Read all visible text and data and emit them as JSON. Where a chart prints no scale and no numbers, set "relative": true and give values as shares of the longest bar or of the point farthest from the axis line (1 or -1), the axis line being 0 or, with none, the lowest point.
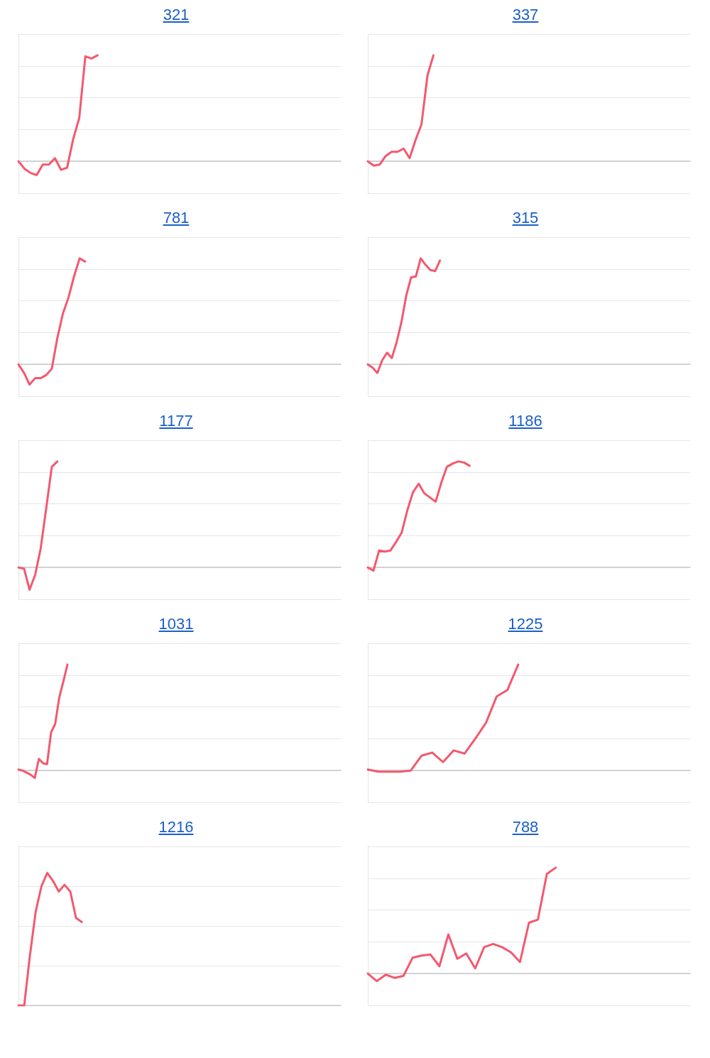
{
  "chart_data": [
    {
      "type": "line",
      "title": "321",
      "relative": true,
      "grid": "y",
      "marker": "none",
      "line_style": "solid",
      "color": "#f4586e",
      "categories": [
        null,
        null,
        null,
        null,
        null,
        null,
        null,
        null,
        null,
        null,
        null,
        null,
        null,
        null,
        null,
        null,
        null,
        null,
        null,
        null,
        null,
        null,
        null,
        null,
        null,
        null,
        null,
        null,
        null,
        null,
        null,
        null,
        null,
        null,
        null,
        null,
        null,
        null,
        null,
        null,
        null,
        null,
        null,
        null,
        null,
        null,
        null,
        null,
        null,
        null,
        null,
        null,
        null,
        null
      ],
      "values": [
        0,
        -0.07,
        -0.11,
        -0.13,
        -0.03,
        -0.03,
        0.03,
        -0.08,
        -0.06,
        0.21,
        0.41,
        0.99,
        0.97,
        1,
        null,
        null,
        null,
        null,
        null,
        null,
        null,
        null,
        null,
        null,
        null,
        null,
        null,
        null,
        null,
        null,
        null,
        null,
        null,
        null,
        null,
        null,
        null,
        null,
        null,
        null,
        null,
        null,
        null,
        null,
        null,
        null,
        null,
        null,
        null,
        null,
        null,
        null,
        null,
        null
      ]
    },
    {
      "type": "line",
      "title": "337",
      "relative": true,
      "grid": "y",
      "marker": "none",
      "line_style": "solid",
      "color": "#f4586e",
      "categories": [
        null,
        null,
        null,
        null,
        null,
        null,
        null,
        null,
        null,
        null,
        null,
        null,
        null,
        null,
        null,
        null,
        null,
        null,
        null,
        null,
        null,
        null,
        null,
        null,
        null,
        null,
        null,
        null,
        null,
        null,
        null,
        null,
        null,
        null,
        null,
        null,
        null,
        null,
        null,
        null,
        null,
        null,
        null,
        null,
        null,
        null,
        null,
        null,
        null,
        null,
        null,
        null,
        null,
        null,
        null
      ],
      "values": [
        0,
        -0.04,
        -0.03,
        0.05,
        0.09,
        0.09,
        0.12,
        0.03,
        0.2,
        0.35,
        0.81,
        1,
        null,
        null,
        null,
        null,
        null,
        null,
        null,
        null,
        null,
        null,
        null,
        null,
        null,
        null,
        null,
        null,
        null,
        null,
        null,
        null,
        null,
        null,
        null,
        null,
        null,
        null,
        null,
        null,
        null,
        null,
        null,
        null,
        null,
        null,
        null,
        null,
        null,
        null,
        null,
        null,
        null,
        null,
        null
      ]
    },
    {
      "type": "line",
      "title": "781",
      "relative": true,
      "grid": "y",
      "marker": "none",
      "line_style": "solid",
      "color": "#f4586e",
      "categories": [
        null,
        null,
        null,
        null,
        null,
        null,
        null,
        null,
        null,
        null,
        null,
        null,
        null,
        null,
        null,
        null,
        null,
        null,
        null,
        null,
        null,
        null,
        null,
        null,
        null,
        null,
        null,
        null,
        null,
        null,
        null,
        null,
        null,
        null,
        null,
        null,
        null,
        null,
        null,
        null,
        null,
        null,
        null,
        null,
        null,
        null,
        null,
        null,
        null,
        null,
        null,
        null,
        null,
        null,
        null,
        null,
        null,
        null,
        null
      ],
      "values": [
        0,
        -0.08,
        -0.19,
        -0.13,
        -0.13,
        -0.1,
        -0.04,
        0.25,
        0.48,
        0.63,
        0.83,
        1,
        0.97,
        null,
        null,
        null,
        null,
        null,
        null,
        null,
        null,
        null,
        null,
        null,
        null,
        null,
        null,
        null,
        null,
        null,
        null,
        null,
        null,
        null,
        null,
        null,
        null,
        null,
        null,
        null,
        null,
        null,
        null,
        null,
        null,
        null,
        null,
        null,
        null,
        null,
        null,
        null,
        null,
        null,
        null,
        null,
        null,
        null,
        null
      ]
    },
    {
      "type": "line",
      "title": "315",
      "relative": true,
      "grid": "y",
      "marker": "none",
      "line_style": "solid",
      "color": "#f4586e",
      "categories": [
        null,
        null,
        null,
        null,
        null,
        null,
        null,
        null,
        null,
        null,
        null,
        null,
        null,
        null,
        null,
        null,
        null,
        null,
        null,
        null,
        null,
        null,
        null,
        null,
        null,
        null,
        null,
        null,
        null,
        null,
        null,
        null,
        null,
        null,
        null,
        null,
        null,
        null,
        null,
        null,
        null,
        null,
        null,
        null,
        null,
        null,
        null,
        null,
        null,
        null,
        null,
        null,
        null,
        null,
        null,
        null,
        null,
        null,
        null,
        null,
        null,
        null,
        null,
        null,
        null,
        null,
        null,
        null
      ],
      "values": [
        0,
        -0.03,
        -0.08,
        0.04,
        0.11,
        0.06,
        0.21,
        0.4,
        0.65,
        0.82,
        0.83,
        1,
        0.94,
        0.89,
        0.88,
        0.98,
        null,
        null,
        null,
        null,
        null,
        null,
        null,
        null,
        null,
        null,
        null,
        null,
        null,
        null,
        null,
        null,
        null,
        null,
        null,
        null,
        null,
        null,
        null,
        null,
        null,
        null,
        null,
        null,
        null,
        null,
        null,
        null,
        null,
        null,
        null,
        null,
        null,
        null,
        null,
        null,
        null,
        null,
        null,
        null,
        null,
        null,
        null,
        null,
        null,
        null,
        null,
        null
      ]
    },
    {
      "type": "line",
      "title": "1177",
      "relative": true,
      "grid": "y",
      "marker": "none",
      "line_style": "solid",
      "color": "#f4586e",
      "categories": [
        null,
        null,
        null,
        null,
        null,
        null,
        null,
        null,
        null,
        null,
        null,
        null,
        null,
        null,
        null,
        null,
        null,
        null,
        null,
        null,
        null,
        null,
        null,
        null,
        null,
        null,
        null,
        null,
        null,
        null,
        null,
        null,
        null,
        null,
        null,
        null,
        null,
        null,
        null,
        null,
        null,
        null,
        null,
        null,
        null,
        null,
        null,
        null,
        null,
        null,
        null,
        null,
        null,
        null,
        null,
        null,
        null,
        null,
        null
      ],
      "values": [
        0,
        -0.01,
        -0.21,
        -0.07,
        0.18,
        0.56,
        0.95,
        1,
        null,
        null,
        null,
        null,
        null,
        null,
        null,
        null,
        null,
        null,
        null,
        null,
        null,
        null,
        null,
        null,
        null,
        null,
        null,
        null,
        null,
        null,
        null,
        null,
        null,
        null,
        null,
        null,
        null,
        null,
        null,
        null,
        null,
        null,
        null,
        null,
        null,
        null,
        null,
        null,
        null,
        null,
        null,
        null,
        null,
        null,
        null,
        null,
        null,
        null,
        null
      ]
    },
    {
      "type": "line",
      "title": "1186",
      "relative": true,
      "grid": "y",
      "marker": "none",
      "line_style": "solid",
      "color": "#f4586e",
      "categories": [
        null,
        null,
        null,
        null,
        null,
        null,
        null,
        null,
        null,
        null,
        null,
        null,
        null,
        null,
        null,
        null,
        null,
        null,
        null,
        null,
        null,
        null,
        null,
        null,
        null,
        null,
        null,
        null,
        null,
        null,
        null,
        null,
        null,
        null,
        null,
        null,
        null,
        null,
        null,
        null,
        null,
        null,
        null,
        null,
        null,
        null,
        null,
        null,
        null,
        null,
        null,
        null,
        null,
        null,
        null,
        null,
        null,
        null
      ],
      "values": [
        0,
        -0.03,
        0.16,
        0.15,
        0.16,
        0.24,
        0.33,
        0.54,
        0.71,
        0.79,
        0.7,
        0.66,
        0.62,
        0.8,
        0.95,
        0.98,
        1,
        0.99,
        0.96,
        null,
        null,
        null,
        null,
        null,
        null,
        null,
        null,
        null,
        null,
        null,
        null,
        null,
        null,
        null,
        null,
        null,
        null,
        null,
        null,
        null,
        null,
        null,
        null,
        null,
        null,
        null,
        null,
        null,
        null,
        null,
        null,
        null,
        null,
        null,
        null,
        null,
        null,
        null
      ]
    },
    {
      "type": "line",
      "title": "1031",
      "relative": true,
      "grid": "y",
      "marker": "none",
      "line_style": "solid",
      "color": "#f4586e",
      "categories": [
        null,
        null,
        null,
        null,
        null,
        null,
        null,
        null,
        null,
        null,
        null,
        null,
        null,
        null,
        null,
        null,
        null,
        null,
        null,
        null,
        null,
        null,
        null,
        null,
        null,
        null,
        null,
        null,
        null,
        null,
        null,
        null,
        null,
        null,
        null,
        null,
        null,
        null,
        null,
        null,
        null,
        null,
        null,
        null,
        null,
        null,
        null,
        null,
        null,
        null,
        null,
        null,
        null,
        null,
        null,
        null,
        null,
        null,
        null,
        null,
        null,
        null,
        null,
        null,
        null,
        null,
        null,
        null,
        null,
        null,
        null,
        null,
        null,
        null,
        null,
        null,
        null,
        null,
        null,
        null
      ],
      "values": [
        0.01,
        0,
        -0.02,
        -0.04,
        -0.07,
        0.11,
        0.07,
        0.06,
        0.36,
        0.44,
        0.69,
        0.84,
        1,
        null,
        null,
        null,
        null,
        null,
        null,
        null,
        null,
        null,
        null,
        null,
        null,
        null,
        null,
        null,
        null,
        null,
        null,
        null,
        null,
        null,
        null,
        null,
        null,
        null,
        null,
        null,
        null,
        null,
        null,
        null,
        null,
        null,
        null,
        null,
        null,
        null,
        null,
        null,
        null,
        null,
        null,
        null,
        null,
        null,
        null,
        null,
        null,
        null,
        null,
        null,
        null,
        null,
        null,
        null,
        null,
        null,
        null,
        null,
        null,
        null,
        null,
        null,
        null,
        null,
        null,
        null
      ]
    },
    {
      "type": "line",
      "title": "1225",
      "relative": true,
      "grid": "y",
      "marker": "none",
      "line_style": "solid",
      "color": "#f4586e",
      "categories": [
        null,
        null,
        null,
        null,
        null,
        null,
        null,
        null,
        null,
        null,
        null,
        null,
        null,
        null,
        null,
        null,
        null,
        null,
        null,
        null,
        null,
        null,
        null,
        null,
        null,
        null,
        null,
        null,
        null,
        null,
        null
      ],
      "values": [
        0.01,
        -0.01,
        -0.01,
        -0.01,
        0,
        0.14,
        0.17,
        0.08,
        0.19,
        0.16,
        0.3,
        0.45,
        0.7,
        0.76,
        1,
        null,
        null,
        null,
        null,
        null,
        null,
        null,
        null,
        null,
        null,
        null,
        null,
        null,
        null,
        null,
        null
      ]
    },
    {
      "type": "line",
      "title": "1216",
      "relative": true,
      "grid": "y",
      "marker": "none",
      "line_style": "solid",
      "color": "#f4586e",
      "categories": [
        null,
        null,
        null,
        null,
        null,
        null,
        null,
        null,
        null,
        null,
        null,
        null,
        null,
        null,
        null,
        null,
        null,
        null,
        null,
        null,
        null,
        null,
        null,
        null,
        null,
        null,
        null,
        null,
        null,
        null,
        null,
        null,
        null,
        null,
        null,
        null,
        null,
        null,
        null,
        null,
        null,
        null,
        null,
        null,
        null,
        null,
        null,
        null,
        null,
        null,
        null,
        null,
        null,
        null,
        null,
        null,
        null
      ],
      "values": [
        0,
        0,
        0.38,
        0.71,
        0.9,
        1,
        0.94,
        0.86,
        0.91,
        0.86,
        0.66,
        0.63,
        null,
        null,
        null,
        null,
        null,
        null,
        null,
        null,
        null,
        null,
        null,
        null,
        null,
        null,
        null,
        null,
        null,
        null,
        null,
        null,
        null,
        null,
        null,
        null,
        null,
        null,
        null,
        null,
        null,
        null,
        null,
        null,
        null,
        null,
        null,
        null,
        null,
        null,
        null,
        null,
        null,
        null,
        null,
        null,
        null
      ]
    },
    {
      "type": "line",
      "title": "788",
      "relative": true,
      "grid": "y",
      "marker": "none",
      "line_style": "solid",
      "color": "#f4586e",
      "categories": [
        null,
        null,
        null,
        null,
        null,
        null,
        null,
        null,
        null,
        null,
        null,
        null,
        null,
        null,
        null,
        null,
        null,
        null,
        null,
        null,
        null,
        null,
        null,
        null,
        null,
        null,
        null,
        null,
        null,
        null,
        null,
        null,
        null,
        null,
        null,
        null,
        null
      ],
      "values": [
        0,
        -0.07,
        -0.01,
        -0.04,
        -0.02,
        0.15,
        0.17,
        0.18,
        0.07,
        0.37,
        0.14,
        0.19,
        0.05,
        0.25,
        0.28,
        0.25,
        0.2,
        0.11,
        0.48,
        0.51,
        0.94,
        1,
        null,
        null,
        null,
        null,
        null,
        null,
        null,
        null,
        null,
        null,
        null,
        null,
        null,
        null,
        null
      ]
    }
  ]
}
